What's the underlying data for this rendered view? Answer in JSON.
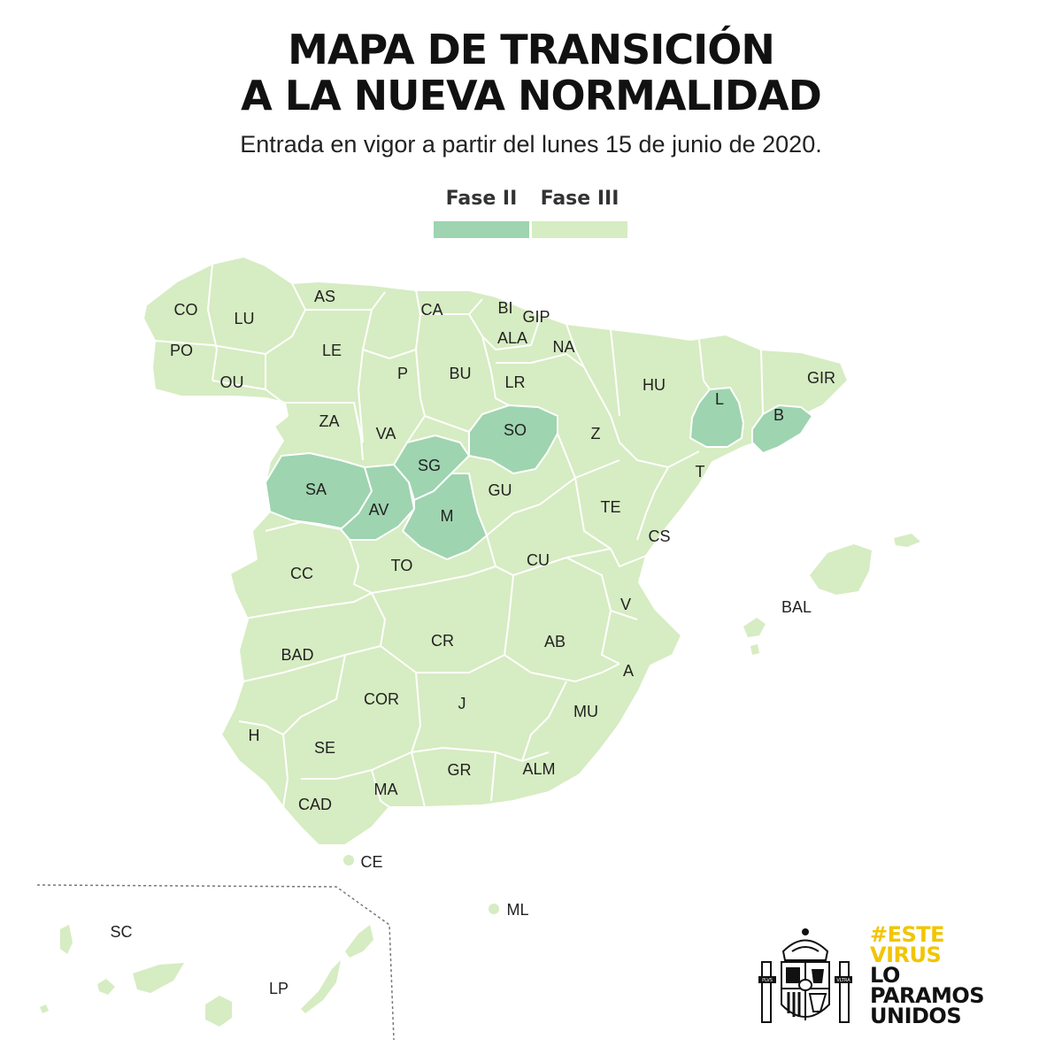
{
  "title": {
    "line1": "MAPA DE TRANSICIÓN",
    "line2": "A LA NUEVA NORMALIDAD"
  },
  "subtitle": "Entrada en vigor a partir del lunes 15 de junio de 2020.",
  "legend": [
    {
      "label": "Fase II",
      "color": "#9ed4b0"
    },
    {
      "label": "Fase III",
      "color": "#d6ecc2"
    }
  ],
  "colors": {
    "fase2": "#9ed4b0",
    "fase3": "#d6ecc2",
    "border": "#ffffff",
    "slogan_highlight": "#f2c500"
  },
  "provinces": [
    {
      "code": "CO",
      "phase": "Fase III"
    },
    {
      "code": "LU",
      "phase": "Fase III"
    },
    {
      "code": "AS",
      "phase": "Fase III"
    },
    {
      "code": "CA",
      "phase": "Fase III"
    },
    {
      "code": "BI",
      "phase": "Fase III"
    },
    {
      "code": "GIP",
      "phase": "Fase III"
    },
    {
      "code": "ALA",
      "phase": "Fase III"
    },
    {
      "code": "NA",
      "phase": "Fase III"
    },
    {
      "code": "PO",
      "phase": "Fase III"
    },
    {
      "code": "OU",
      "phase": "Fase III"
    },
    {
      "code": "LE",
      "phase": "Fase III"
    },
    {
      "code": "P",
      "phase": "Fase III"
    },
    {
      "code": "BU",
      "phase": "Fase III"
    },
    {
      "code": "LR",
      "phase": "Fase III"
    },
    {
      "code": "HU",
      "phase": "Fase III"
    },
    {
      "code": "GIR",
      "phase": "Fase III"
    },
    {
      "code": "L",
      "phase": "Fase II"
    },
    {
      "code": "B",
      "phase": "Fase II"
    },
    {
      "code": "ZA",
      "phase": "Fase III"
    },
    {
      "code": "VA",
      "phase": "Fase III"
    },
    {
      "code": "SO",
      "phase": "Fase II"
    },
    {
      "code": "Z",
      "phase": "Fase III"
    },
    {
      "code": "SG",
      "phase": "Fase II"
    },
    {
      "code": "T",
      "phase": "Fase III"
    },
    {
      "code": "SA",
      "phase": "Fase II"
    },
    {
      "code": "AV",
      "phase": "Fase II"
    },
    {
      "code": "M",
      "phase": "Fase II"
    },
    {
      "code": "GU",
      "phase": "Fase III"
    },
    {
      "code": "TE",
      "phase": "Fase III"
    },
    {
      "code": "CS",
      "phase": "Fase III"
    },
    {
      "code": "CC",
      "phase": "Fase III"
    },
    {
      "code": "TO",
      "phase": "Fase III"
    },
    {
      "code": "CU",
      "phase": "Fase III"
    },
    {
      "code": "V",
      "phase": "Fase III"
    },
    {
      "code": "BAL",
      "phase": "Fase III"
    },
    {
      "code": "BAD",
      "phase": "Fase III"
    },
    {
      "code": "CR",
      "phase": "Fase III"
    },
    {
      "code": "AB",
      "phase": "Fase III"
    },
    {
      "code": "A",
      "phase": "Fase III"
    },
    {
      "code": "COR",
      "phase": "Fase III"
    },
    {
      "code": "J",
      "phase": "Fase III"
    },
    {
      "code": "MU",
      "phase": "Fase III"
    },
    {
      "code": "H",
      "phase": "Fase III"
    },
    {
      "code": "SE",
      "phase": "Fase III"
    },
    {
      "code": "GR",
      "phase": "Fase III"
    },
    {
      "code": "ALM",
      "phase": "Fase III"
    },
    {
      "code": "MA",
      "phase": "Fase III"
    },
    {
      "code": "CAD",
      "phase": "Fase III"
    },
    {
      "code": "CE",
      "phase": "Fase III"
    },
    {
      "code": "ML",
      "phase": "Fase III"
    },
    {
      "code": "SC",
      "phase": "Fase III"
    },
    {
      "code": "LP",
      "phase": "Fase III"
    }
  ],
  "slogan": {
    "line1": "#ESTE",
    "line2": "VIRUS",
    "line3": "LO",
    "line4": "PARAMOS",
    "line5": "UNIDOS"
  },
  "coat_of_arms_text": {
    "left_pillar": "PLVS",
    "right_pillar": "VLTRA"
  }
}
